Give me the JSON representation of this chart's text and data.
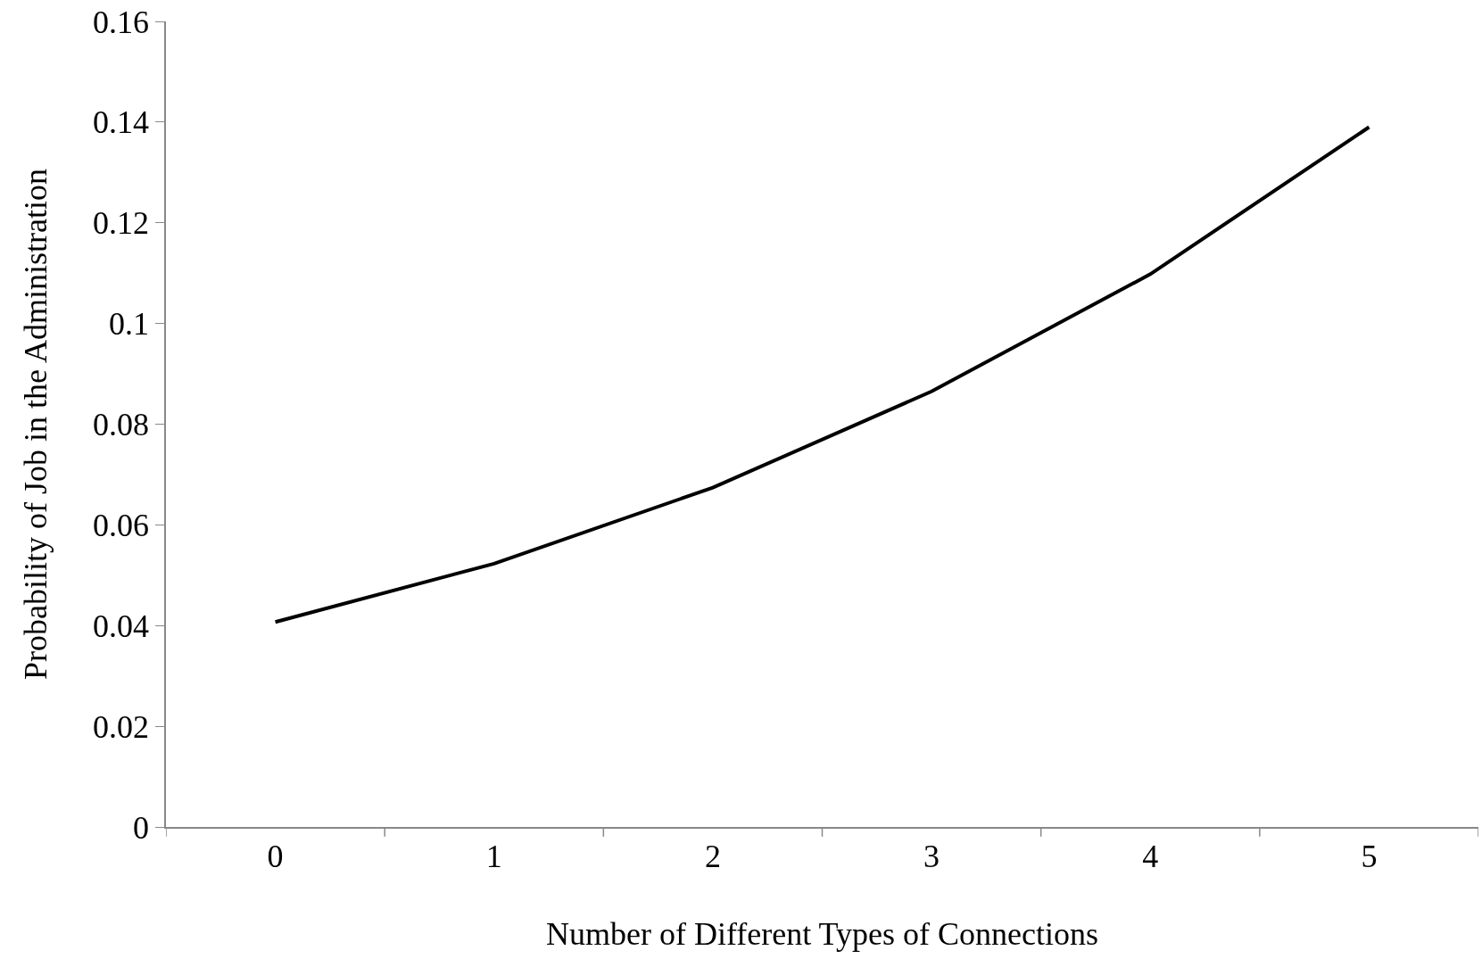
{
  "chart_data": {
    "type": "line",
    "xlabel": "Number of Different Types of Connections",
    "ylabel": "Probability of Job in the Administration",
    "categories": [
      "0",
      "1",
      "2",
      "3",
      "4",
      "5"
    ],
    "series": [
      {
        "color": "#000000",
        "values": [
          0.0407,
          0.0523,
          0.0674,
          0.0865,
          0.1098,
          0.139
        ]
      }
    ],
    "ylim": [
      0,
      0.16
    ],
    "yticks": [
      0,
      0.02,
      0.04,
      0.06,
      0.08,
      0.1,
      0.12,
      0.14,
      0.16
    ],
    "line_style": "solid"
  }
}
